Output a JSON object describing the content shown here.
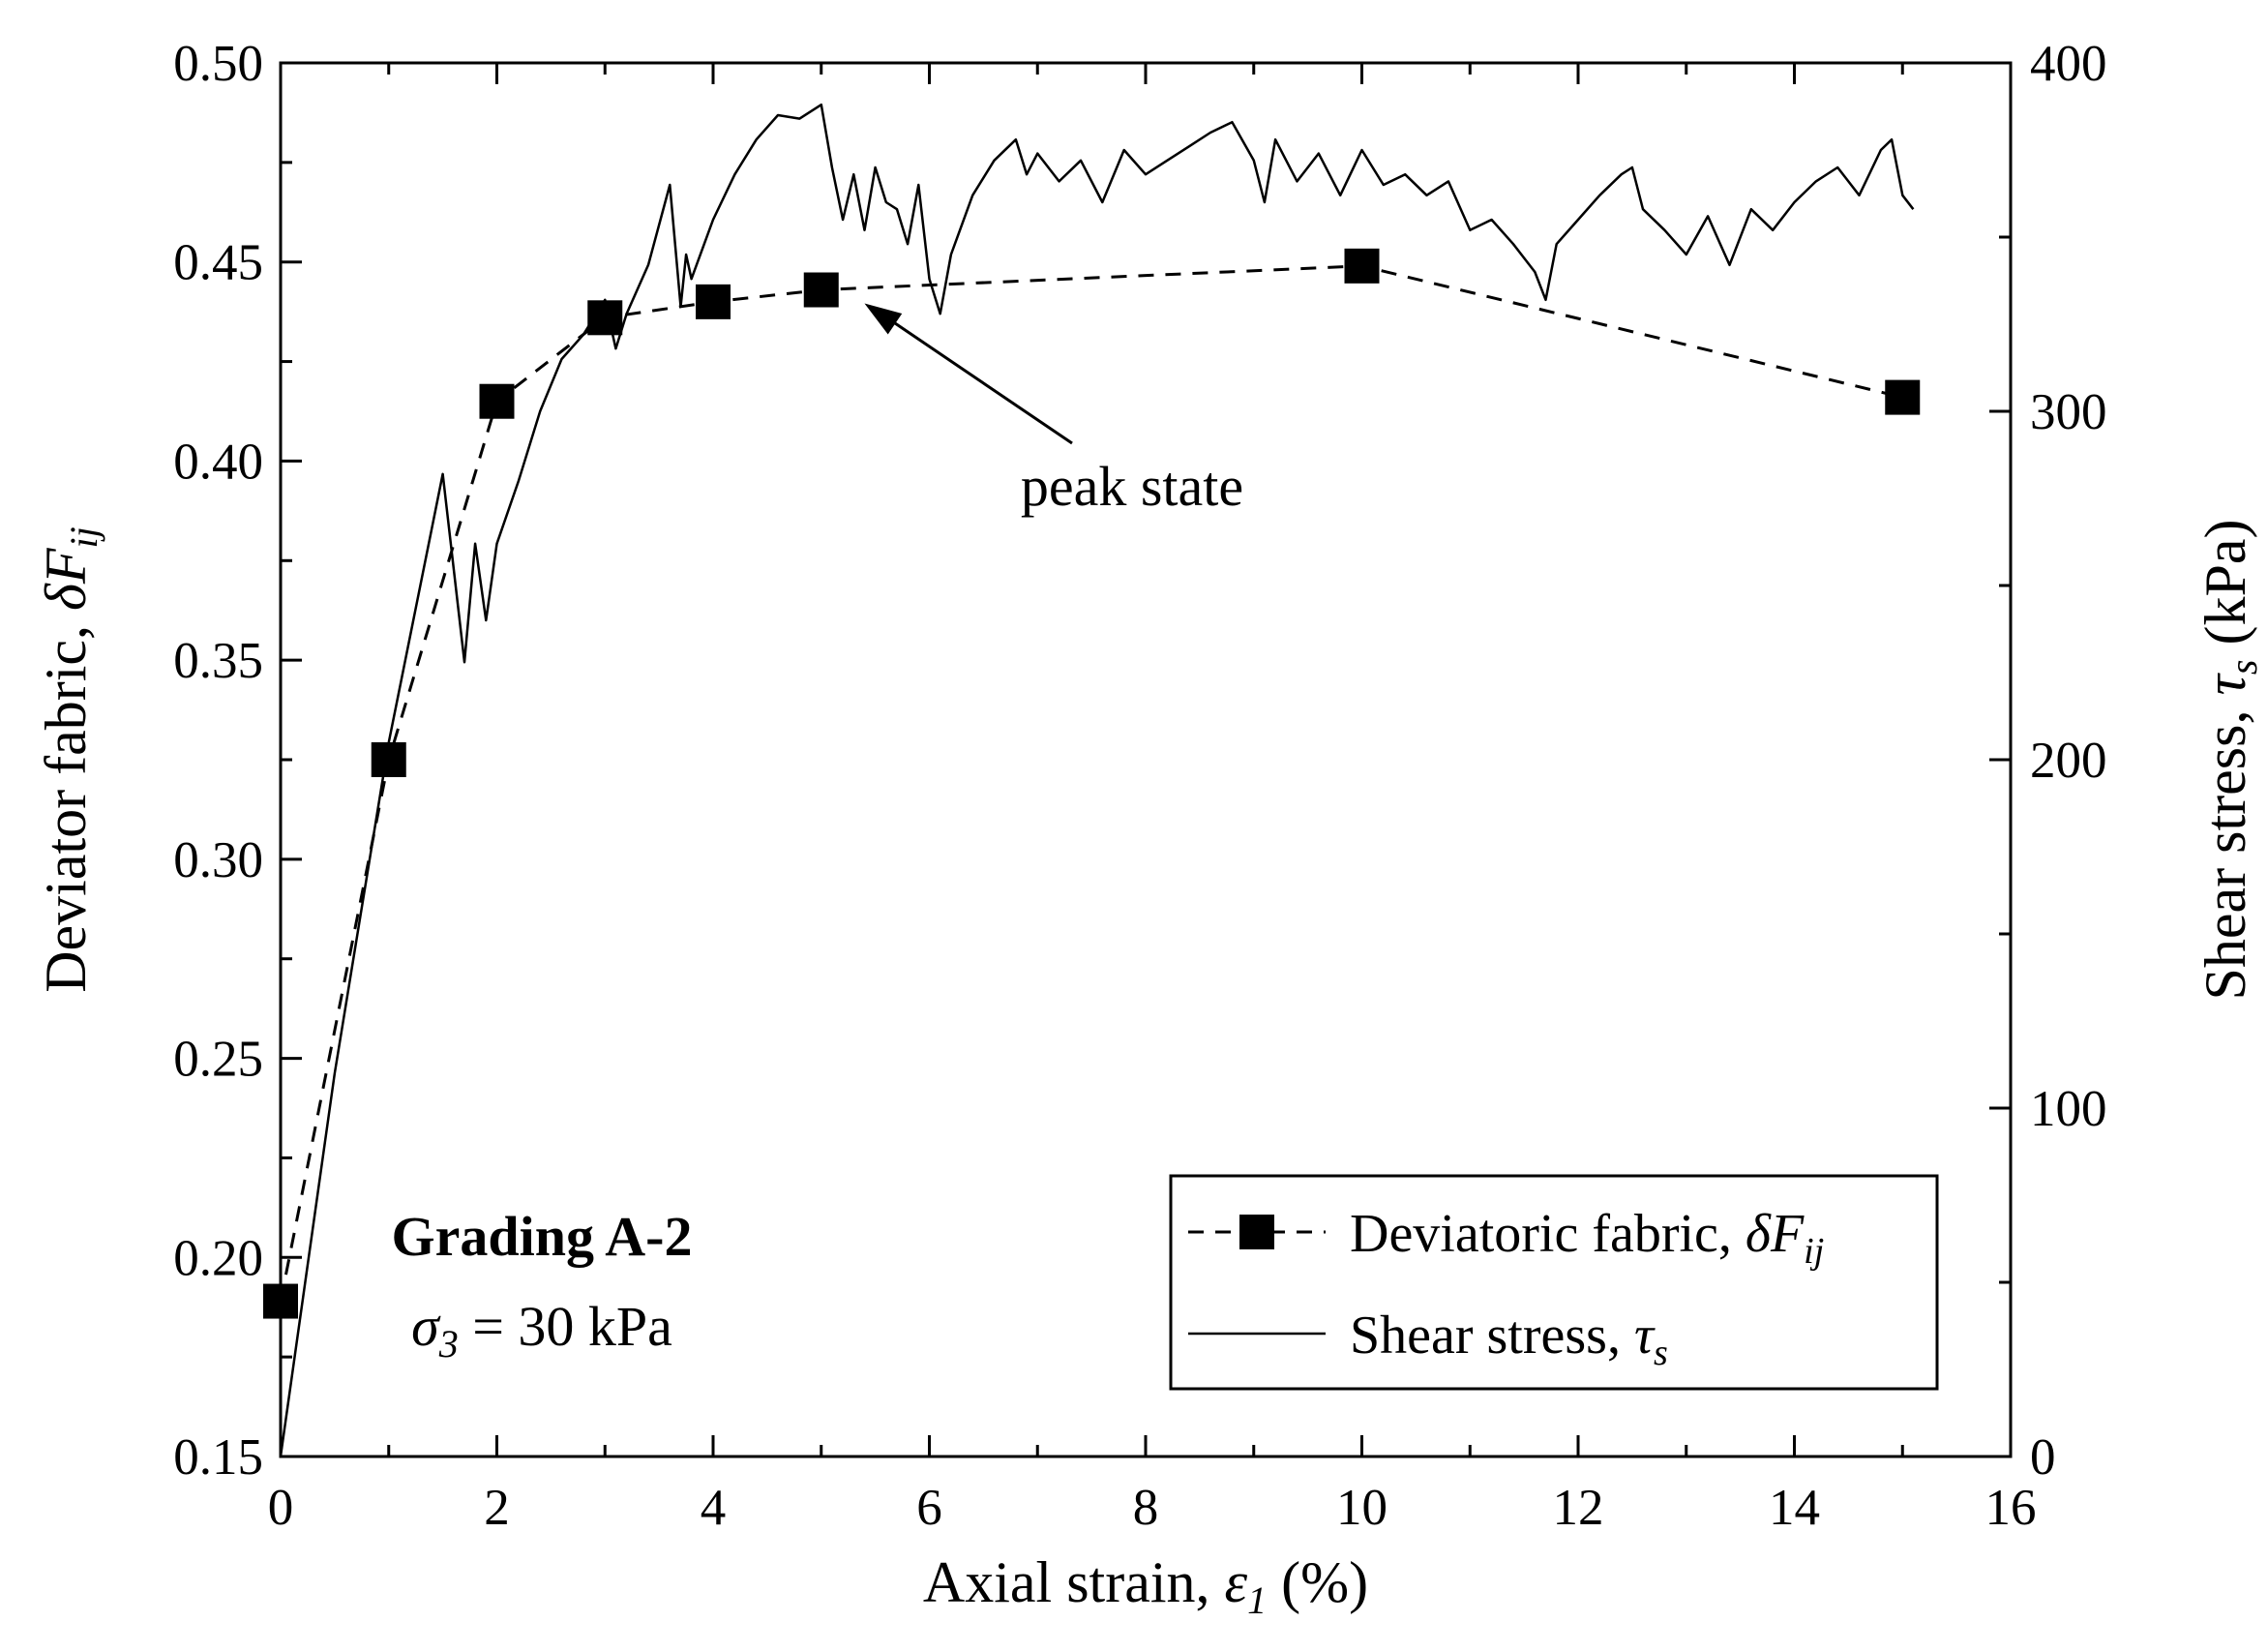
{
  "chart_data": {
    "type": "line",
    "title": "",
    "xlabel": {
      "main": "Axial strain, ",
      "sym": "ε",
      "sub": "1",
      "unit": " (%)"
    },
    "ylabel_left": {
      "main": "Deviator fabric, ",
      "sym": "δF",
      "sub": "ij"
    },
    "ylabel_right": {
      "main": "Shear stress, ",
      "sym": "τ",
      "sub": "s",
      "unit": " (kPa)"
    },
    "xlim": [
      0,
      16
    ],
    "ylim_left": [
      0.15,
      0.5
    ],
    "ylim_right": [
      0,
      400
    ],
    "x_ticks": [
      0,
      2,
      4,
      6,
      8,
      10,
      12,
      14,
      16
    ],
    "x_tick_labels": [
      "0",
      "2",
      "4",
      "6",
      "8",
      "10",
      "12",
      "14",
      "16"
    ],
    "y_left_ticks": [
      0.15,
      0.2,
      0.25,
      0.3,
      0.35,
      0.4,
      0.45,
      0.5
    ],
    "y_left_tick_labels": [
      "0.15",
      "0.20",
      "0.25",
      "0.30",
      "0.35",
      "0.40",
      "0.45",
      "0.50"
    ],
    "y_right_ticks": [
      0,
      100,
      200,
      300,
      400
    ],
    "y_right_tick_labels": [
      "0",
      "100",
      "200",
      "300",
      "400"
    ],
    "grid": false,
    "series": [
      {
        "name": "Deviatoric fabric, δFij",
        "axis": "left",
        "style": "dashed",
        "marker": "square",
        "color": "#000000",
        "x": [
          0,
          1,
          2,
          3,
          4,
          5,
          10,
          15
        ],
        "y": [
          0.189,
          0.325,
          0.415,
          0.436,
          0.44,
          0.443,
          0.449,
          0.416
        ]
      },
      {
        "name": "Shear stress, τs",
        "axis": "right",
        "style": "solid",
        "marker": "none",
        "color": "#000000",
        "x": [
          0,
          0.5,
          1.0,
          1.5,
          1.7,
          1.8,
          1.9,
          2.0,
          2.2,
          2.4,
          2.6,
          2.8,
          3.0,
          3.1,
          3.2,
          3.4,
          3.6,
          3.7,
          3.75,
          3.8,
          4.0,
          4.2,
          4.4,
          4.6,
          4.8,
          5.0,
          5.1,
          5.2,
          5.3,
          5.4,
          5.5,
          5.6,
          5.7,
          5.8,
          5.9,
          6.0,
          6.1,
          6.2,
          6.4,
          6.6,
          6.8,
          6.9,
          7.0,
          7.2,
          7.4,
          7.6,
          7.8,
          8.0,
          8.2,
          8.4,
          8.6,
          8.8,
          9.0,
          9.1,
          9.2,
          9.4,
          9.6,
          9.8,
          10.0,
          10.2,
          10.4,
          10.6,
          10.8,
          11.0,
          11.2,
          11.4,
          11.6,
          11.7,
          11.8,
          12.0,
          12.2,
          12.4,
          12.5,
          12.6,
          12.8,
          13.0,
          13.2,
          13.4,
          13.6,
          13.8,
          14.0,
          14.2,
          14.4,
          14.6,
          14.8,
          14.9,
          15.0,
          15.1
        ],
        "y": [
          0,
          110,
          205,
          282,
          228,
          262,
          240,
          262,
          280,
          300,
          315,
          322,
          332,
          318,
          328,
          342,
          365,
          330,
          345,
          338,
          355,
          368,
          378,
          385,
          384,
          388,
          370,
          355,
          368,
          352,
          370,
          360,
          358,
          348,
          365,
          338,
          328,
          345,
          362,
          372,
          378,
          368,
          374,
          366,
          372,
          360,
          375,
          368,
          372,
          376,
          380,
          383,
          372,
          360,
          378,
          366,
          374,
          362,
          375,
          365,
          368,
          362,
          366,
          352,
          355,
          348,
          340,
          332,
          348,
          355,
          362,
          368,
          370,
          358,
          352,
          345,
          356,
          342,
          358,
          352,
          360,
          366,
          370,
          362,
          375,
          378,
          362,
          358
        ]
      }
    ],
    "legend": {
      "position": "bottom-right",
      "entries": [
        "Deviatoric fabric, ",
        "Shear stress, "
      ],
      "entry_syms": [
        "δF",
        "τ"
      ],
      "entry_subs": [
        "ij",
        "s"
      ]
    },
    "annotations": {
      "grading": "Grading A-2",
      "sigma_sym": "σ",
      "sigma_sub": "3",
      "sigma_value": " = 30 kPa",
      "peak_label": "peak state",
      "peak_arrow_target": {
        "x": 5.4,
        "y": 0.443
      }
    }
  }
}
